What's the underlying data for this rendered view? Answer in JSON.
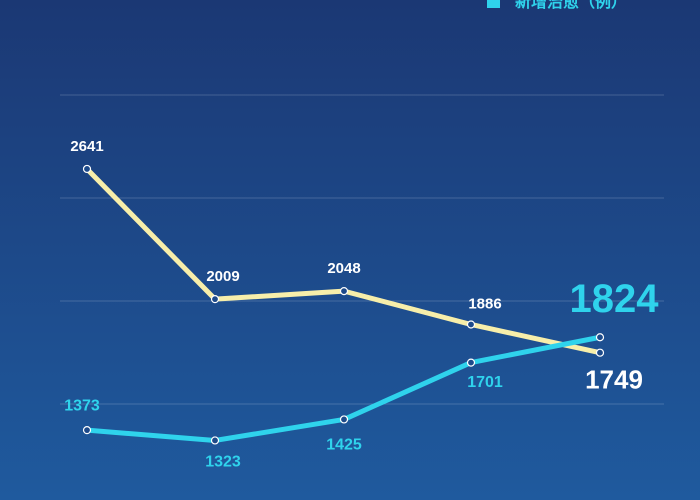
{
  "chart_data": {
    "type": "line",
    "categories": [
      null,
      null,
      null,
      null,
      null
    ],
    "series": [
      {
        "color": "#f7eeaa",
        "values": [
          2641,
          2009,
          2048,
          1886,
          1749
        ]
      },
      {
        "name": "新增治愈（例）",
        "color": "#2fd3ec",
        "values": [
          1373,
          1323,
          1425,
          1701,
          1824
        ]
      }
    ],
    "ylim": [
      1000,
      3000
    ],
    "yticks": [
      1500,
      2000,
      2500,
      3000
    ],
    "grid": true
  }
}
